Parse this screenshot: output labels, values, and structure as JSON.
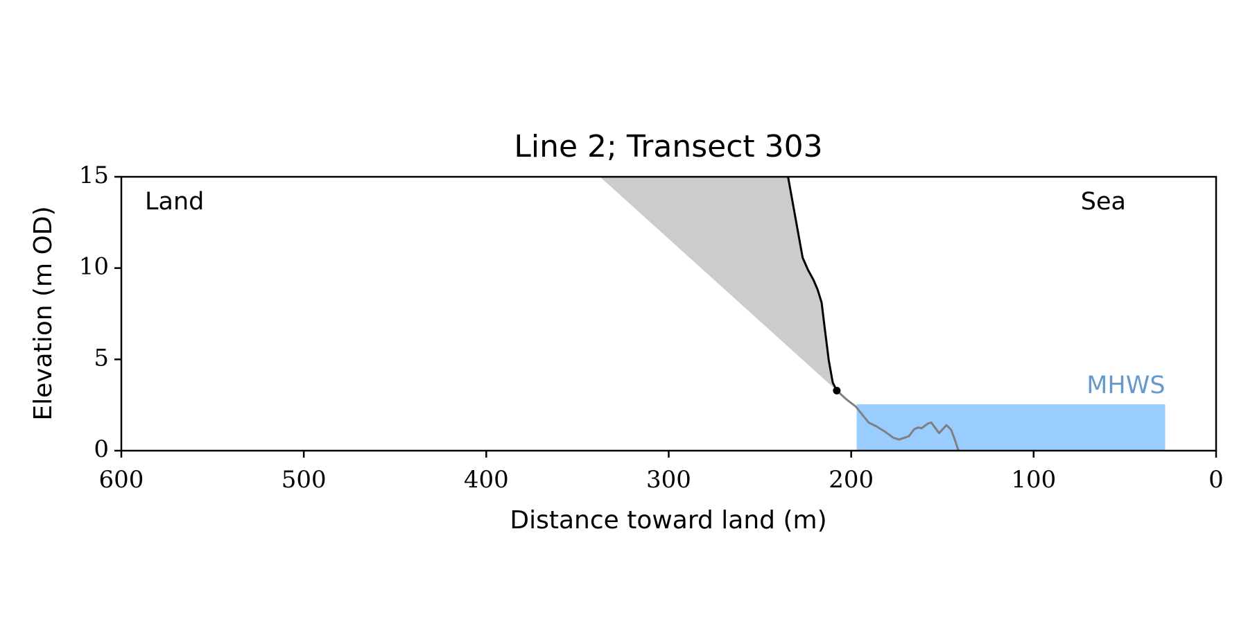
{
  "chart_data": {
    "type": "line",
    "title": "Line 2; Transect 303",
    "xlabel": "Distance toward land (m)",
    "ylabel": "Elevation (m OD)",
    "xlim": [
      600,
      0
    ],
    "ylim": [
      0,
      15
    ],
    "xticks": [
      600,
      500,
      400,
      300,
      200,
      100,
      0
    ],
    "yticks": [
      0,
      5,
      10,
      15
    ],
    "series": [
      {
        "color": "#000000",
        "x": [
          234.6,
          226.6,
          223.7,
          220.6,
          218.4,
          216.2,
          214.5,
          212.3,
          210.1,
          207.9
        ],
        "values": [
          15,
          10.57,
          9.91,
          9.34,
          8.82,
          8.11,
          6.71,
          4.96,
          3.73,
          3.29
        ]
      },
      {
        "color": "#808080",
        "x": [
          207.9,
          202.6,
          197.4,
          193.9,
          190.4,
          186.0,
          181.6,
          176.8,
          173.7,
          168.4,
          165.4,
          163.2,
          161.4,
          157.9,
          156.1,
          151.8,
          147.8,
          145.2,
          143.4,
          141.2
        ],
        "values": [
          3.29,
          2.81,
          2.41,
          1.97,
          1.54,
          1.32,
          1.05,
          0.7,
          0.61,
          0.79,
          1.18,
          1.27,
          1.23,
          1.49,
          1.54,
          0.96,
          1.4,
          1.14,
          0.66,
          0
        ]
      }
    ],
    "marker": {
      "x": 207.9,
      "y": 3.29,
      "color": "#000000"
    },
    "shaded": {
      "x": [
        337.7,
        207.9
      ],
      "y": [
        15,
        3.29
      ],
      "color": "#cccccc"
    },
    "mhws": {
      "label": "MHWS",
      "value": 2.54,
      "x": [
        197.0,
        27.9
      ],
      "color": "#99ccff",
      "label_color": "#6699cc"
    },
    "annotations": [
      "Land",
      "Sea"
    ]
  }
}
